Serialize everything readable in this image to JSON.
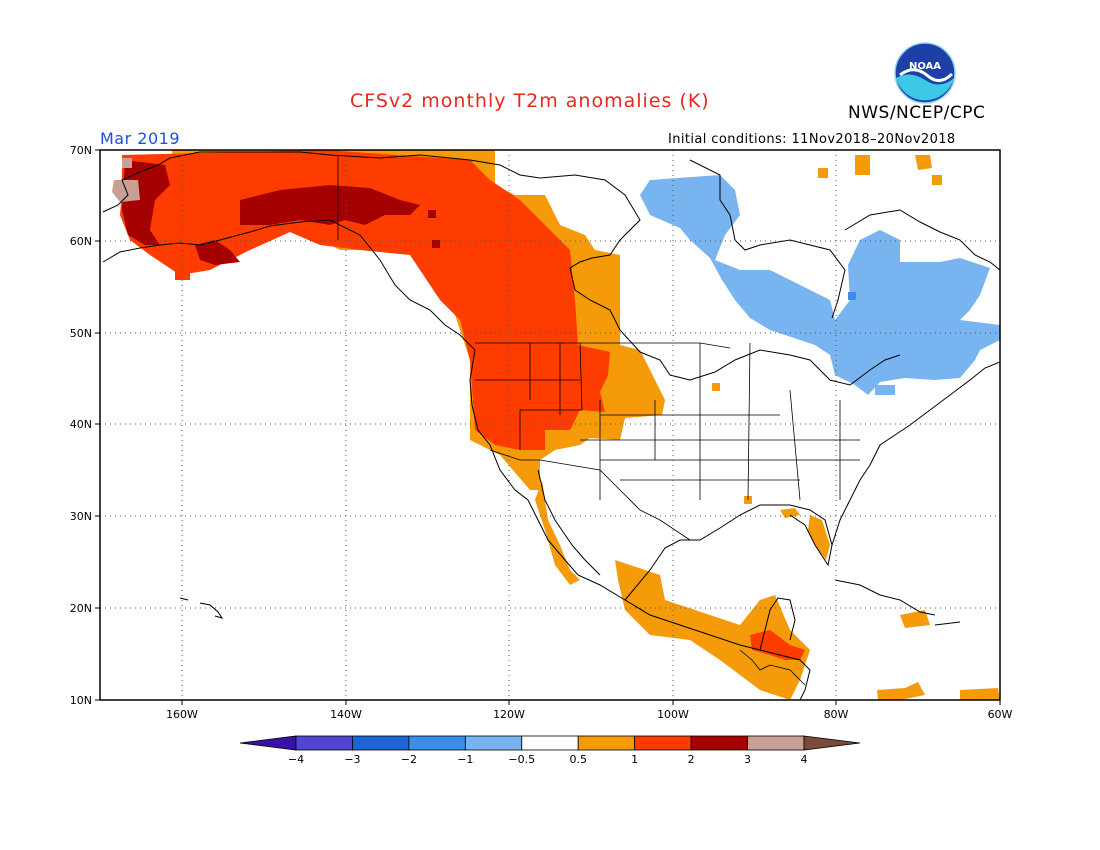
{
  "title": "CFSv2 monthly T2m anomalies (K)",
  "agency": "NWS/NCEP/CPC",
  "logo_text": "NOAA",
  "period": "Mar 2019",
  "initial_conditions": "Initial conditions: 11Nov2018–20Nov2018",
  "lat_labels": [
    "70N",
    "60N",
    "50N",
    "40N",
    "30N",
    "20N",
    "10N"
  ],
  "lon_labels": [
    "160W",
    "140W",
    "120W",
    "100W",
    "80W",
    "60W"
  ],
  "colorbar": {
    "labels": [
      "−4",
      "−3",
      "−2",
      "−1",
      "−0.5",
      "0.5",
      "1",
      "2",
      "3",
      "4"
    ],
    "colors": [
      "#3a10a8",
      "#5046d2",
      "#1e64d2",
      "#3c8ce8",
      "#78b4f0",
      "#ffffff",
      "#f59b0a",
      "#ff3c00",
      "#a50000",
      "#c8a096",
      "#7a4a3a"
    ]
  },
  "anomaly_colors": {
    "light_warm": "#f59b0a",
    "warm": "#ff3c00",
    "hot": "#a50000",
    "very_hot": "#c8a096",
    "cool": "#78b4f0",
    "cold": "#3c8ce8"
  }
}
